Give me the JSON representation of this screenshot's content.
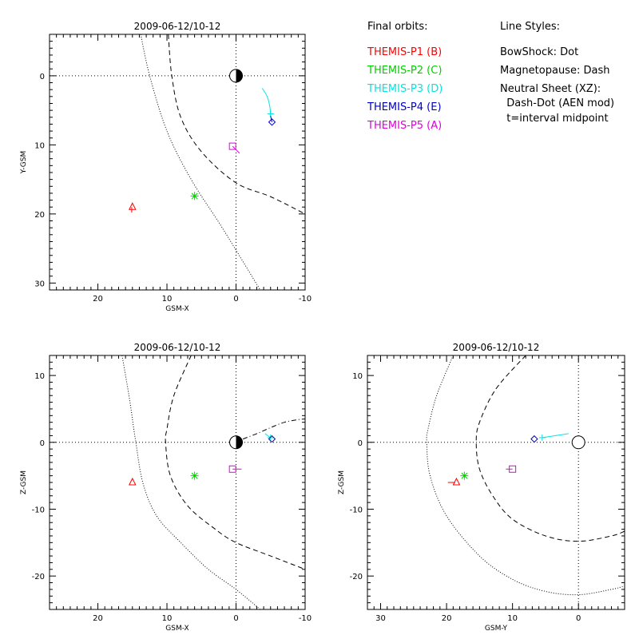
{
  "legend": {
    "orbits_title": "Final orbits:",
    "probes": [
      {
        "label": "THEMIS-P1 (B)",
        "color": "#ff0000"
      },
      {
        "label": "THEMIS-P2 (C)",
        "color": "#00d000"
      },
      {
        "label": "THEMIS-P3 (D)",
        "color": "#00e5e5"
      },
      {
        "label": "THEMIS-P4 (E)",
        "color": "#0000c8"
      },
      {
        "label": "THEMIS-P5 (A)",
        "color": "#e000e0"
      }
    ],
    "styles_title": "Line Styles:",
    "styles": [
      "BowShock: Dot",
      "Magnetopause: Dash",
      "Neutral Sheet (XZ):",
      "  Dash-Dot (AEN mod)",
      "  t=interval midpoint"
    ]
  },
  "chart_data": [
    {
      "type": "scatter",
      "title": "2009-06-12/10-12",
      "xlabel": "GSM-X",
      "ylabel": "Y-GSM",
      "xlim": [
        27,
        -10
      ],
      "ylim": [
        31,
        -6
      ],
      "xticks": [
        20,
        10,
        0,
        -10
      ],
      "yticks": [
        0,
        10,
        20,
        30
      ],
      "earth": {
        "x": 0,
        "y": 0
      },
      "probes": [
        {
          "name": "THEMIS-P1 (B)",
          "symbol": "triangle",
          "x": 15,
          "y": 19,
          "track": [
            [
              15.1,
              19.0
            ],
            [
              15.1,
              19.8
            ]
          ]
        },
        {
          "name": "THEMIS-P2 (C)",
          "symbol": "asterisk",
          "x": 6,
          "y": 17.4,
          "track": []
        },
        {
          "name": "THEMIS-P3 (D)",
          "symbol": "plus",
          "x": -5,
          "y": 5.5,
          "track": [
            [
              -3.8,
              1.8
            ],
            [
              -4.5,
              3
            ],
            [
              -4.9,
              4.5
            ],
            [
              -5,
              5.8
            ]
          ]
        },
        {
          "name": "THEMIS-P4 (E)",
          "symbol": "diamond",
          "x": -5.2,
          "y": 6.7,
          "track": [
            [
              -5,
              5.8
            ],
            [
              -5.1,
              6.3
            ],
            [
              -5.2,
              6.7
            ]
          ]
        },
        {
          "name": "THEMIS-P5 (A)",
          "symbol": "square",
          "x": 0.5,
          "y": 10.2,
          "track": [
            [
              0.5,
              10.2
            ],
            [
              -0.5,
              11.2
            ]
          ]
        }
      ],
      "bow_shock": [
        [
          13.8,
          -6
        ],
        [
          12.5,
          0
        ],
        [
          10,
          8
        ],
        [
          6.5,
          15
        ],
        [
          2,
          22
        ],
        [
          -3.5,
          31
        ]
      ],
      "magnetopause": [
        [
          9.8,
          -6
        ],
        [
          9.3,
          0
        ],
        [
          8,
          6
        ],
        [
          5,
          11
        ],
        [
          0,
          15.5
        ],
        [
          -5,
          17.5
        ],
        [
          -10,
          20
        ]
      ]
    },
    {
      "type": "scatter",
      "title": "2009-06-12/10-12",
      "xlabel": "GSM-X",
      "ylabel": "Z-GSM",
      "xlim": [
        27,
        -10
      ],
      "ylim": [
        -25,
        13
      ],
      "xticks": [
        20,
        10,
        0,
        -10
      ],
      "yticks": [
        -20,
        -10,
        0,
        10
      ],
      "earth": {
        "x": 0,
        "y": 0
      },
      "probes": [
        {
          "name": "THEMIS-P1 (B)",
          "symbol": "triangle",
          "x": 15,
          "y": -6,
          "track": []
        },
        {
          "name": "THEMIS-P2 (C)",
          "symbol": "asterisk",
          "x": 6,
          "y": -5,
          "track": []
        },
        {
          "name": "THEMIS-P3 (D)",
          "symbol": "plus",
          "x": -5,
          "y": 0.7,
          "track": [
            [
              -4.2,
              1.3
            ],
            [
              -4.6,
              1
            ],
            [
              -5,
              0.7
            ]
          ]
        },
        {
          "name": "THEMIS-P4 (E)",
          "symbol": "diamond",
          "x": -5.2,
          "y": 0.5,
          "track": []
        },
        {
          "name": "THEMIS-P5 (A)",
          "symbol": "square",
          "x": 0.5,
          "y": -4,
          "track": [
            [
              0.5,
              -4
            ],
            [
              -0.8,
              -4
            ]
          ]
        }
      ],
      "neutral_sheet": [
        [
          -1,
          0.5
        ],
        [
          -3,
          1.3
        ],
        [
          -5,
          2.2
        ],
        [
          -7,
          3
        ],
        [
          -9,
          3.4
        ],
        [
          -10,
          3.5
        ]
      ],
      "bow_shock": [
        [
          16.5,
          13
        ],
        [
          15.5,
          7
        ],
        [
          14.8,
          2
        ],
        [
          14.5,
          0
        ],
        [
          13.5,
          -6
        ],
        [
          11.5,
          -11
        ],
        [
          8,
          -15
        ],
        [
          4,
          -19
        ],
        [
          0,
          -22
        ],
        [
          -3.5,
          -25
        ]
      ],
      "magnetopause": [
        [
          6.5,
          13
        ],
        [
          9,
          7
        ],
        [
          10,
          2
        ],
        [
          10.2,
          0
        ],
        [
          9.5,
          -5
        ],
        [
          7,
          -9.5
        ],
        [
          3,
          -13
        ],
        [
          0,
          -15
        ],
        [
          -5,
          -17
        ],
        [
          -10,
          -19
        ]
      ]
    },
    {
      "type": "scatter",
      "title": "2009-06-12/10-12",
      "xlabel": "GSM-Y",
      "ylabel": "Z-GSM",
      "xlim": [
        32,
        -7
      ],
      "ylim": [
        -25,
        13
      ],
      "xticks": [
        30,
        20,
        10,
        0
      ],
      "yticks": [
        -20,
        -10,
        0,
        10
      ],
      "earth": {
        "x": 0,
        "y": 0
      },
      "probes": [
        {
          "name": "THEMIS-P1 (B)",
          "symbol": "triangle",
          "x": 18.5,
          "y": -6,
          "track": [
            [
              19.8,
              -6
            ],
            [
              18.7,
              -6
            ]
          ]
        },
        {
          "name": "THEMIS-P2 (C)",
          "symbol": "asterisk",
          "x": 17.3,
          "y": -5,
          "track": []
        },
        {
          "name": "THEMIS-P3 (D)",
          "symbol": "plus",
          "x": 5.5,
          "y": 0.7,
          "track": [
            [
              1.5,
              1.3
            ],
            [
              3.5,
              1
            ],
            [
              5.5,
              0.7
            ]
          ]
        },
        {
          "name": "THEMIS-P4 (E)",
          "symbol": "diamond",
          "x": 6.7,
          "y": 0.5,
          "track": []
        },
        {
          "name": "THEMIS-P5 (A)",
          "symbol": "square",
          "x": 10,
          "y": -4,
          "track": [
            [
              11,
              -4
            ],
            [
              10,
              -4
            ]
          ]
        }
      ],
      "bow_shock": [
        [
          19,
          13
        ],
        [
          21.5,
          7
        ],
        [
          22.8,
          2
        ],
        [
          23,
          0
        ],
        [
          22.5,
          -5
        ],
        [
          20,
          -11
        ],
        [
          15,
          -17
        ],
        [
          10,
          -20.5
        ],
        [
          5,
          -22.3
        ],
        [
          0,
          -22.8
        ],
        [
          -5,
          -22
        ],
        [
          -7,
          -21.5
        ]
      ],
      "magnetopause": [
        [
          8,
          13
        ],
        [
          12.5,
          8
        ],
        [
          15,
          3
        ],
        [
          15.5,
          0
        ],
        [
          15,
          -4
        ],
        [
          13,
          -8
        ],
        [
          10,
          -11.5
        ],
        [
          5,
          -14
        ],
        [
          0,
          -14.8
        ],
        [
          -5,
          -14
        ],
        [
          -7,
          -13.3
        ]
      ]
    }
  ]
}
